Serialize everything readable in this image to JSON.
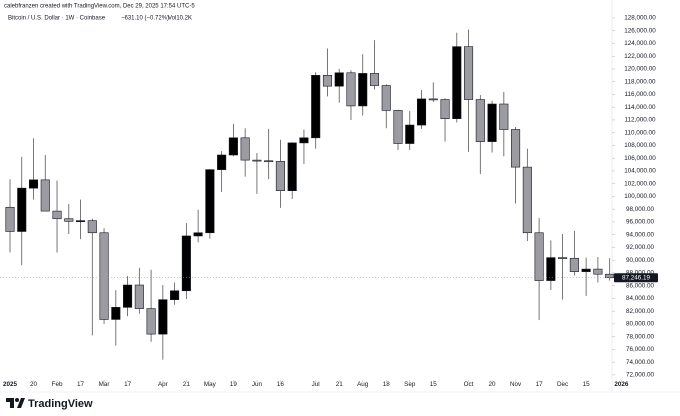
{
  "chart_data": {
    "type": "candlestick",
    "watermark": "calebfranzen created with TradingView.com, Dec 29, 2025 17:54 UTC-5",
    "title": "Bitcoin / U.S. Dollar · 1W · Coinbase",
    "change": "−631.10 (−0.72%)",
    "volume": "Vol10.2K",
    "brand": "TradingView",
    "up_color": "#000000",
    "down_color": "#9b9ba1",
    "wick_color": "#555555",
    "open": [
      98300,
      94500,
      101300,
      102600,
      97700,
      96500,
      96100,
      96200,
      94300,
      80700,
      82600,
      86100,
      82400,
      78400,
      83800,
      85200,
      93800,
      94300,
      104200,
      106500,
      109200,
      105700,
      105600,
      105500,
      100900,
      108400,
      109200,
      119000,
      117300,
      119400,
      114200,
      119300,
      117400,
      113500,
      108300,
      111200,
      115300,
      115200,
      112200,
      123500,
      115200,
      108600,
      114500,
      110500,
      104600,
      94300,
      86800,
      90400,
      90300,
      88200,
      88600,
      87800
    ],
    "high": [
      102700,
      106200,
      109100,
      106500,
      102500,
      98800,
      99500,
      96500,
      95000,
      85300,
      87500,
      88800,
      88500,
      86100,
      86500,
      95800,
      97900,
      104300,
      107100,
      111400,
      110700,
      106800,
      110600,
      108900,
      108500,
      110500,
      119500,
      123200,
      120000,
      119800,
      122300,
      124500,
      117600,
      113600,
      113400,
      116700,
      117900,
      115400,
      125700,
      126200,
      115900,
      115000,
      116400,
      110900,
      107500,
      96600,
      93100,
      94100,
      94600,
      90400,
      90500,
      90300
    ],
    "low": [
      91200,
      89200,
      99500,
      97800,
      91200,
      94100,
      93300,
      78200,
      80000,
      76600,
      81200,
      81600,
      77200,
      74400,
      83000,
      83900,
      92800,
      93400,
      100700,
      106300,
      103100,
      100400,
      102700,
      98200,
      99600,
      105100,
      107500,
      115700,
      114700,
      112000,
      112700,
      116800,
      110700,
      107300,
      107300,
      110600,
      114800,
      108600,
      111600,
      107000,
      103500,
      106900,
      106300,
      98900,
      93000,
      80600,
      85300,
      83800,
      87600,
      84400,
      86500,
      86800
    ],
    "close": [
      94500,
      101300,
      102600,
      97700,
      96500,
      96100,
      96200,
      94300,
      80700,
      82600,
      86100,
      82400,
      78400,
      83800,
      85200,
      93800,
      94300,
      104200,
      106500,
      109200,
      105700,
      105600,
      105500,
      100900,
      108400,
      109200,
      119000,
      117300,
      119400,
      114200,
      119300,
      117400,
      113500,
      108300,
      111200,
      115300,
      115200,
      112200,
      123500,
      115200,
      108600,
      114500,
      110500,
      104600,
      94300,
      86800,
      90400,
      90300,
      88200,
      88600,
      87800,
      87246.19
    ],
    "last_price": {
      "value": 87246.19,
      "label": "87,246.19"
    },
    "xlim": [
      -0.85,
      51.2
    ],
    "xticks": [
      {
        "value": 0,
        "label": "2025"
      },
      {
        "value": 2,
        "label": "20"
      },
      {
        "value": 4,
        "label": "Feb"
      },
      {
        "value": 6,
        "label": "17"
      },
      {
        "value": 8,
        "label": "Mar"
      },
      {
        "value": 10,
        "label": "17"
      },
      {
        "value": 13,
        "label": "Apr"
      },
      {
        "value": 15,
        "label": "21"
      },
      {
        "value": 17,
        "label": "May"
      },
      {
        "value": 19,
        "label": "19"
      },
      {
        "value": 21,
        "label": "Jun"
      },
      {
        "value": 23,
        "label": "16"
      },
      {
        "value": 26,
        "label": "Jul"
      },
      {
        "value": 28,
        "label": "21"
      },
      {
        "value": 30,
        "label": "Aug"
      },
      {
        "value": 32,
        "label": "18"
      },
      {
        "value": 34,
        "label": "Sep"
      },
      {
        "value": 36,
        "label": "15"
      },
      {
        "value": 39,
        "label": "Oct"
      },
      {
        "value": 41,
        "label": "20"
      },
      {
        "value": 43,
        "label": "Nov"
      },
      {
        "value": 45,
        "label": "17"
      },
      {
        "value": 47,
        "label": "Dec"
      },
      {
        "value": 49,
        "label": "15"
      },
      {
        "value": 52,
        "label": "2026"
      }
    ],
    "ylim": [
      71200,
      129250
    ],
    "yticks": [
      {
        "value": 72000,
        "label": "72,000.00"
      },
      {
        "value": 74000,
        "label": "74,000.00"
      },
      {
        "value": 76000,
        "label": "76,000.00"
      },
      {
        "value": 78000,
        "label": "78,000.00"
      },
      {
        "value": 80000,
        "label": "80,000.00"
      },
      {
        "value": 82000,
        "label": "82,000.00"
      },
      {
        "value": 84000,
        "label": "84,000.00"
      },
      {
        "value": 86000,
        "label": "86,000.00"
      },
      {
        "value": 88000,
        "label": "88,000.00"
      },
      {
        "value": 90000,
        "label": "90,000.00"
      },
      {
        "value": 92000,
        "label": "92,000.00"
      },
      {
        "value": 94000,
        "label": "94,000.00"
      },
      {
        "value": 96000,
        "label": "96,000.00"
      },
      {
        "value": 98000,
        "label": "98,000.00"
      },
      {
        "value": 100000,
        "label": "100,000.00"
      },
      {
        "value": 102000,
        "label": "102,000.00"
      },
      {
        "value": 104000,
        "label": "104,000.00"
      },
      {
        "value": 106000,
        "label": "106,000.00"
      },
      {
        "value": 108000,
        "label": "108,000.00"
      },
      {
        "value": 110000,
        "label": "110,000.00"
      },
      {
        "value": 112000,
        "label": "112,000.00"
      },
      {
        "value": 114000,
        "label": "114,000.00"
      },
      {
        "value": 116000,
        "label": "116,000.00"
      },
      {
        "value": 118000,
        "label": "118,000.00"
      },
      {
        "value": 120000,
        "label": "120,000.00"
      },
      {
        "value": 122000,
        "label": "122,000.00"
      },
      {
        "value": 124000,
        "label": "124,000.00"
      },
      {
        "value": 126000,
        "label": "126,000.00"
      },
      {
        "value": 128000,
        "label": "128,000.00"
      }
    ],
    "grid": false
  }
}
